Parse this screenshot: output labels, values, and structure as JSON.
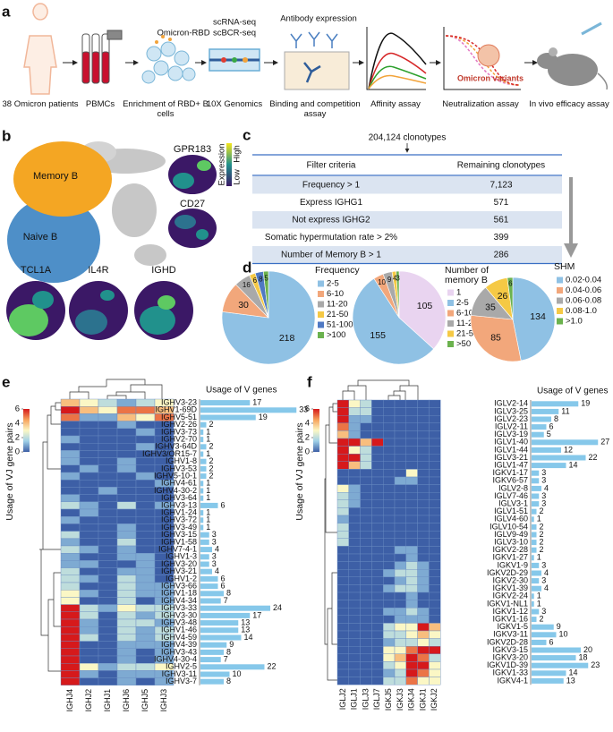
{
  "panel_labels": [
    "a",
    "b",
    "c",
    "d",
    "e",
    "f"
  ],
  "pipeline": {
    "steps": [
      "38 Omicron patients",
      "PBMCs",
      "Enrichment of RBD+ B cells",
      "10X Genomics",
      "Binding and competition assay",
      "Affinity assay",
      "Neutralization assay",
      "In vivo efficacy assay"
    ],
    "omicron_rbd": "Omicron-RBD",
    "sequencing": [
      "scRNA-seq",
      "scBCR-seq"
    ],
    "antibody": "Antibody expression",
    "variants": "Omicron variants"
  },
  "umap": {
    "clusters": [
      "Memory B",
      "Naive B"
    ],
    "genes": [
      "GPR183",
      "CD27",
      "TCL1A",
      "IL4R",
      "IGHD"
    ],
    "legend": {
      "title": "Expression",
      "high": "High",
      "low": "Low"
    }
  },
  "filter_table": {
    "total": "204,124 clonotypes",
    "headers": [
      "Filter criteria",
      "Remaining clonotypes"
    ],
    "rows": [
      [
        "Frequency > 1",
        "7,123"
      ],
      [
        "Express IGHG1",
        "571"
      ],
      [
        "Not express IGHG2",
        "561"
      ],
      [
        "Somatic hypermutation rate > 2%",
        "399"
      ],
      [
        "Number of Memory B > 1",
        "286"
      ]
    ]
  },
  "chart_data": [
    {
      "type": "pie",
      "title": "Frequency",
      "categories": [
        "2-5",
        "6-10",
        "11-20",
        "21-50",
        "51-100",
        ">100"
      ],
      "values": [
        218,
        30,
        16,
        6,
        8,
        5
      ],
      "colors": [
        "#8fc1e4",
        "#f2a77b",
        "#a9a9a9",
        "#f5c945",
        "#4f79c3",
        "#6bb24e"
      ]
    },
    {
      "type": "pie",
      "title": "Number of memory B",
      "categories": [
        "1",
        "2-5",
        "6-10",
        "11-20",
        "21-50",
        ">50"
      ],
      "values": [
        105,
        155,
        10,
        9,
        4,
        3
      ],
      "colors": [
        "#e9d4f0",
        "#8fc1e4",
        "#f2a77b",
        "#a9a9a9",
        "#f5c945",
        "#6bb24e"
      ]
    },
    {
      "type": "pie",
      "title": "SHM",
      "categories": [
        "0.02-0.04",
        "0.04-0.06",
        "0.06-0.08",
        "0.08-1.0",
        ">1.0"
      ],
      "values": [
        134,
        85,
        35,
        26,
        6
      ],
      "colors": [
        "#8fc1e4",
        "#f2a77b",
        "#a9a9a9",
        "#f5c945",
        "#6bb24e"
      ]
    },
    {
      "type": "heatmap_bar",
      "colorbar_label": "Usage of VJ gene pairs",
      "clim": [
        0,
        6
      ],
      "cticks": [
        0,
        2,
        4,
        6
      ],
      "colors": [
        "#3d5fa6",
        "#9fd0e8",
        "#fbf7c5",
        "#f6a25b",
        "#d6191b"
      ],
      "columns": [
        "IGHJ4",
        "IGHJ2",
        "IGHJ1",
        "IGHJ6",
        "IGHJ5",
        "IGHJ3"
      ],
      "rows": [
        "IGHV3-23",
        "IGHV1-69D",
        "IGHV5-51",
        "IGHV2-26",
        "IGHV3-73",
        "IGHV2-70",
        "IGHV3-64D",
        "IGHV3/OR15-7",
        "IGHV1-8",
        "IGHV3-53",
        "IGHV5-10-1",
        "IGHV4-61",
        "IGHV4-30-2",
        "IGHV3-64",
        "IGHV3-13",
        "IGHV1-24",
        "IGHV3-72",
        "IGHV3-49",
        "IGHV3-15",
        "IGHV1-58",
        "IGHV7-4-1",
        "IGHV1-3",
        "IGHV3-20",
        "IGHV3-21",
        "IGHV1-2",
        "IGHV3-66",
        "IGHV1-18",
        "IGHV4-34",
        "IGHV3-33",
        "IGHV3-30",
        "IGHV3-48",
        "IGHV1-46",
        "IGHV4-59",
        "IGHV4-39",
        "IGHV3-43",
        "IGHV4-30-4",
        "IGHV2-5",
        "IGHV3-11",
        "IGHV3-7"
      ],
      "matrix": [
        [
          4,
          3,
          2,
          1,
          2,
          3
        ],
        [
          6,
          4,
          3,
          5,
          5,
          4
        ],
        [
          5,
          1,
          1,
          4,
          3,
          5
        ],
        [
          0,
          0,
          0,
          1,
          0,
          0
        ],
        [
          0,
          0,
          0,
          0,
          1,
          0
        ],
        [
          1,
          0,
          0,
          0,
          0,
          0
        ],
        [
          0,
          0,
          0,
          0,
          1,
          0
        ],
        [
          1,
          0,
          0,
          0,
          0,
          0
        ],
        [
          1,
          0,
          0,
          1,
          0,
          0
        ],
        [
          0,
          1,
          0,
          1,
          0,
          0
        ],
        [
          1,
          0,
          0,
          0,
          1,
          0
        ],
        [
          0,
          0,
          0,
          0,
          0,
          1
        ],
        [
          0,
          0,
          1,
          0,
          0,
          0
        ],
        [
          1,
          0,
          0,
          0,
          0,
          0
        ],
        [
          2,
          1,
          0,
          2,
          0,
          1
        ],
        [
          0,
          1,
          0,
          0,
          0,
          0
        ],
        [
          1,
          0,
          0,
          0,
          0,
          0
        ],
        [
          0,
          0,
          0,
          1,
          0,
          0
        ],
        [
          2,
          0,
          0,
          1,
          0,
          0
        ],
        [
          1,
          0,
          0,
          2,
          0,
          0
        ],
        [
          2,
          1,
          0,
          1,
          0,
          0
        ],
        [
          1,
          0,
          0,
          1,
          1,
          0
        ],
        [
          1,
          1,
          0,
          0,
          1,
          0
        ],
        [
          2,
          0,
          0,
          1,
          1,
          0
        ],
        [
          2,
          1,
          0,
          2,
          1,
          0
        ],
        [
          2,
          0,
          0,
          2,
          1,
          1
        ],
        [
          3,
          1,
          0,
          2,
          1,
          1
        ],
        [
          3,
          0,
          0,
          2,
          0,
          1
        ],
        [
          6,
          2,
          1,
          3,
          2,
          2
        ],
        [
          6,
          2,
          0,
          2,
          1,
          2
        ],
        [
          6,
          1,
          0,
          2,
          2,
          1
        ],
        [
          6,
          1,
          0,
          2,
          1,
          2
        ],
        [
          6,
          2,
          0,
          2,
          1,
          2
        ],
        [
          6,
          0,
          0,
          1,
          1,
          1
        ],
        [
          6,
          0,
          0,
          1,
          0,
          1
        ],
        [
          6,
          0,
          0,
          1,
          0,
          1
        ],
        [
          6,
          3,
          1,
          2,
          2,
          3
        ],
        [
          6,
          1,
          0,
          1,
          1,
          1
        ],
        [
          6,
          0,
          0,
          1,
          0,
          1
        ]
      ],
      "bar_title": "Usage of V genes",
      "bar_color": "#86c8ea",
      "bar_values": [
        17,
        33,
        19,
        2,
        1,
        1,
        2,
        1,
        2,
        2,
        2,
        1,
        1,
        1,
        6,
        1,
        1,
        1,
        3,
        3,
        4,
        3,
        3,
        4,
        6,
        6,
        8,
        7,
        24,
        17,
        13,
        13,
        14,
        9,
        8,
        7,
        22,
        10,
        8
      ]
    },
    {
      "type": "heatmap_bar",
      "colorbar_label": "Usage of VJ gene pairs",
      "clim": [
        0,
        6
      ],
      "cticks": [
        0,
        2,
        4,
        6
      ],
      "colors": [
        "#3d5fa6",
        "#9fd0e8",
        "#fbf7c5",
        "#f6a25b",
        "#d6191b"
      ],
      "columns": [
        "IGLJ2",
        "IGLJ1",
        "IGLJ3",
        "IGLJ7",
        "IGKJ5",
        "IGKJ3",
        "IGKJ4",
        "IGKJ1",
        "IGKJ2"
      ],
      "rows": [
        "IGLV2-14",
        "IGLV3-25",
        "IGLV2-23",
        "IGLV2-11",
        "IGLV3-19",
        "IGLV1-40",
        "IGLV1-44",
        "IGLV3-21",
        "IGLV1-47",
        "IGKV1-17",
        "IGKV6-57",
        "IGLV2-8",
        "IGLV7-46",
        "IGLV3-1",
        "IGLV1-51",
        "IGLV4-60",
        "IGLV10-54",
        "IGLV9-49",
        "IGLV3-10",
        "IGKV2-28",
        "IGKV1-27",
        "IGKV1-9",
        "IGKV2D-29",
        "IGKV2-30",
        "IGKV1-39",
        "IGKV2-24",
        "IGKV1-NL1",
        "IGKV1-12",
        "IGKV1-16",
        "IGKV1-5",
        "IGKV3-11",
        "IGKV2D-28",
        "IGKV3-15",
        "IGKV3-20",
        "IGKV1D-39",
        "IGKV1-33",
        "IGKV4-1"
      ],
      "matrix": [
        [
          6,
          3,
          2,
          0,
          0,
          0,
          0,
          0,
          0
        ],
        [
          6,
          2,
          2,
          0,
          0,
          0,
          0,
          0,
          0
        ],
        [
          6,
          1,
          1,
          0,
          0,
          0,
          0,
          0,
          0
        ],
        [
          5,
          1,
          0,
          0,
          0,
          0,
          0,
          0,
          0
        ],
        [
          4,
          1,
          0,
          0,
          0,
          0,
          0,
          0,
          0
        ],
        [
          6,
          6,
          4,
          6,
          0,
          0,
          0,
          0,
          0
        ],
        [
          6,
          3,
          2,
          0,
          0,
          0,
          0,
          0,
          0
        ],
        [
          6,
          6,
          2,
          0,
          0,
          0,
          0,
          0,
          0
        ],
        [
          6,
          4,
          2,
          0,
          0,
          0,
          0,
          0,
          0
        ],
        [
          0,
          0,
          0,
          0,
          0,
          0,
          3,
          0,
          0
        ],
        [
          0,
          0,
          0,
          0,
          0,
          1,
          1,
          0,
          0
        ],
        [
          3,
          1,
          0,
          0,
          0,
          0,
          0,
          0,
          0
        ],
        [
          2,
          1,
          0,
          0,
          0,
          0,
          0,
          0,
          0
        ],
        [
          2,
          1,
          0,
          0,
          0,
          0,
          0,
          0,
          0
        ],
        [
          2,
          0,
          0,
          0,
          0,
          0,
          0,
          0,
          0
        ],
        [
          1,
          0,
          0,
          0,
          0,
          0,
          0,
          0,
          0
        ],
        [
          2,
          0,
          0,
          0,
          0,
          0,
          0,
          0,
          0
        ],
        [
          2,
          0,
          0,
          0,
          0,
          0,
          0,
          0,
          0
        ],
        [
          2,
          0,
          0,
          0,
          0,
          0,
          0,
          0,
          0
        ],
        [
          0,
          0,
          0,
          0,
          0,
          1,
          1,
          0,
          0
        ],
        [
          0,
          0,
          0,
          0,
          0,
          0,
          1,
          0,
          0
        ],
        [
          0,
          0,
          0,
          0,
          0,
          1,
          2,
          1,
          0
        ],
        [
          0,
          0,
          0,
          0,
          1,
          2,
          2,
          1,
          0
        ],
        [
          0,
          0,
          0,
          0,
          0,
          1,
          2,
          1,
          0
        ],
        [
          0,
          0,
          0,
          0,
          1,
          2,
          2,
          1,
          0
        ],
        [
          0,
          0,
          0,
          0,
          0,
          0,
          1,
          0,
          0
        ],
        [
          0,
          0,
          0,
          0,
          0,
          0,
          1,
          0,
          0
        ],
        [
          0,
          0,
          0,
          0,
          1,
          1,
          2,
          1,
          0
        ],
        [
          0,
          0,
          0,
          0,
          0,
          1,
          1,
          1,
          0
        ],
        [
          0,
          0,
          0,
          0,
          2,
          3,
          3,
          6,
          4
        ],
        [
          0,
          0,
          0,
          0,
          2,
          2,
          3,
          4,
          3
        ],
        [
          0,
          0,
          0,
          0,
          1,
          2,
          2,
          3,
          2
        ],
        [
          0,
          0,
          0,
          0,
          3,
          3,
          5,
          6,
          6
        ],
        [
          0,
          0,
          0,
          0,
          3,
          4,
          6,
          5,
          2
        ],
        [
          0,
          0,
          0,
          0,
          2,
          3,
          6,
          6,
          3
        ],
        [
          0,
          0,
          0,
          0,
          1,
          2,
          6,
          5,
          3
        ],
        [
          0,
          0,
          0,
          0,
          2,
          2,
          5,
          3,
          3
        ]
      ],
      "bar_title": "Usage of V genes",
      "bar_color": "#86c8ea",
      "bar_values": [
        19,
        11,
        8,
        6,
        5,
        27,
        12,
        22,
        14,
        3,
        3,
        4,
        3,
        3,
        2,
        1,
        2,
        2,
        2,
        2,
        1,
        3,
        4,
        3,
        4,
        1,
        1,
        3,
        2,
        9,
        10,
        6,
        20,
        18,
        23,
        14,
        13
      ]
    }
  ]
}
